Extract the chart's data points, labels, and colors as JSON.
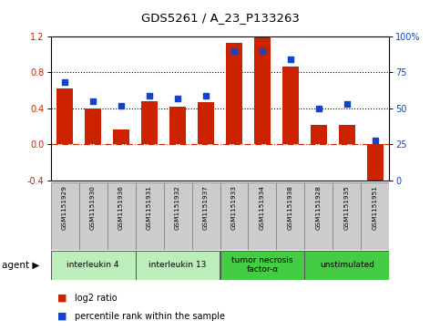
{
  "title": "GDS5261 / A_23_P133263",
  "samples": [
    "GSM1151929",
    "GSM1151930",
    "GSM1151936",
    "GSM1151931",
    "GSM1151932",
    "GSM1151937",
    "GSM1151933",
    "GSM1151934",
    "GSM1151938",
    "GSM1151928",
    "GSM1151935",
    "GSM1151951"
  ],
  "log2_ratio": [
    0.62,
    0.4,
    0.17,
    0.48,
    0.42,
    0.47,
    1.13,
    1.19,
    0.86,
    0.22,
    0.22,
    -0.45
  ],
  "percentile": [
    68,
    55,
    52,
    59,
    57,
    59,
    90,
    90,
    84,
    50,
    53,
    28
  ],
  "bar_color": "#cc2200",
  "dot_color": "#1144cc",
  "ylim_left": [
    -0.4,
    1.2
  ],
  "ylim_right": [
    0,
    100
  ],
  "yticks_left": [
    -0.4,
    0.0,
    0.4,
    0.8,
    1.2
  ],
  "yticks_right": [
    0,
    25,
    50,
    75,
    100
  ],
  "yticklabels_right": [
    "0",
    "25",
    "50",
    "75",
    "100%"
  ],
  "hlines": [
    0.4,
    0.8
  ],
  "zero_line": 0.0,
  "agents": [
    {
      "label": "interleukin 4",
      "start": 0,
      "end": 3,
      "color": "#bbeebb"
    },
    {
      "label": "interleukin 13",
      "start": 3,
      "end": 6,
      "color": "#bbeebb"
    },
    {
      "label": "tumor necrosis\nfactor-α",
      "start": 6,
      "end": 9,
      "color": "#44cc44"
    },
    {
      "label": "unstimulated",
      "start": 9,
      "end": 12,
      "color": "#44cc44"
    }
  ],
  "legend_items": [
    {
      "label": "log2 ratio",
      "color": "#cc2200"
    },
    {
      "label": "percentile rank within the sample",
      "color": "#1144cc"
    }
  ],
  "background_color": "#ffffff",
  "sample_box_color": "#cccccc",
  "bar_width": 0.6
}
